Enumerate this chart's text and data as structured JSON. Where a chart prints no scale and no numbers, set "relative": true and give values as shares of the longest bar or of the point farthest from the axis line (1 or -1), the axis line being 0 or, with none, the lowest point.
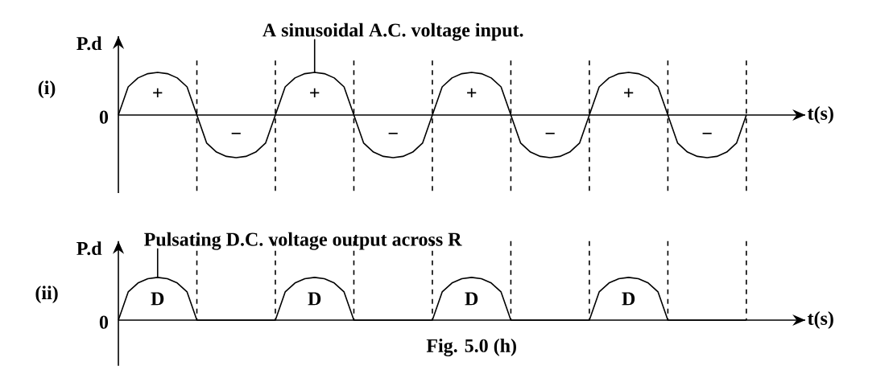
{
  "chart_data": [
    {
      "type": "line",
      "relative": true,
      "title": "A sinusoidal A.C. voltage input.",
      "xlabel": "t(s)",
      "ylabel": "P.d",
      "categories": [
        null,
        null,
        null,
        null,
        null,
        null,
        null,
        null,
        null,
        null,
        null,
        null,
        null,
        null,
        null,
        null,
        null,
        null,
        null,
        null,
        null,
        null,
        null,
        null,
        null,
        null,
        null,
        null,
        null,
        null,
        null,
        null,
        null,
        null,
        null,
        null,
        null,
        null,
        null,
        null,
        null,
        null,
        null,
        null,
        null,
        null,
        null,
        null,
        null,
        null,
        null,
        null,
        null,
        null,
        null,
        null,
        null,
        null,
        null,
        null,
        null,
        null,
        null,
        null,
        null
      ],
      "series": [
        {
          "color": "#000000",
          "values": [
            0,
            0.66,
            0.87,
            0.97,
            1,
            0.97,
            0.87,
            0.66,
            0,
            -0.66,
            -0.87,
            -0.97,
            -1,
            -0.97,
            -0.87,
            -0.66,
            0,
            0.66,
            0.87,
            0.97,
            1,
            0.97,
            0.87,
            0.66,
            0,
            -0.66,
            -0.87,
            -0.97,
            -1,
            -0.97,
            -0.87,
            -0.66,
            0,
            0.66,
            0.87,
            0.97,
            1,
            0.97,
            0.87,
            0.66,
            0,
            -0.66,
            -0.87,
            -0.97,
            -1,
            -0.97,
            -0.87,
            -0.66,
            0,
            0.66,
            0.87,
            0.97,
            1,
            0.97,
            0.87,
            0.66,
            0,
            -0.66,
            -0.87,
            -0.97,
            -1,
            -0.97,
            -0.87,
            -0.66,
            0
          ]
        }
      ],
      "annotations": [
        "(i)",
        "0",
        "+",
        "−",
        "+",
        "−",
        "+",
        "−",
        "+",
        "−"
      ],
      "grid": "x"
    },
    {
      "type": "line",
      "relative": true,
      "title": "Pulsating D.C. voltage output across R",
      "xlabel": "t(s)",
      "ylabel": "P.d",
      "categories": [
        null,
        null,
        null,
        null,
        null,
        null,
        null,
        null,
        null,
        null,
        null,
        null,
        null,
        null,
        null,
        null,
        null,
        null,
        null,
        null,
        null,
        null,
        null,
        null,
        null,
        null,
        null,
        null,
        null,
        null,
        null,
        null,
        null,
        null,
        null,
        null,
        null,
        null,
        null,
        null,
        null,
        null,
        null,
        null,
        null,
        null,
        null,
        null,
        null,
        null,
        null,
        null,
        null,
        null,
        null,
        null,
        null,
        null,
        null,
        null,
        null,
        null,
        null,
        null,
        null
      ],
      "series": [
        {
          "color": "#000000",
          "values": [
            0,
            0.66,
            0.87,
            0.97,
            1,
            0.97,
            0.87,
            0.66,
            0,
            0,
            0,
            0,
            0,
            0,
            0,
            0,
            0,
            0.66,
            0.87,
            0.97,
            1,
            0.97,
            0.87,
            0.66,
            0,
            0,
            0,
            0,
            0,
            0,
            0,
            0,
            0,
            0.66,
            0.87,
            0.97,
            1,
            0.97,
            0.87,
            0.66,
            0,
            0,
            0,
            0,
            0,
            0,
            0,
            0,
            0,
            0.66,
            0.87,
            0.97,
            1,
            0.97,
            0.87,
            0.66,
            0,
            0,
            0,
            0,
            0,
            0,
            0,
            0,
            0
          ]
        }
      ],
      "annotations": [
        "(ii)",
        "0",
        "D",
        "D",
        "D",
        "D",
        "Fig. 5.0 (h)"
      ],
      "grid": "x"
    }
  ]
}
